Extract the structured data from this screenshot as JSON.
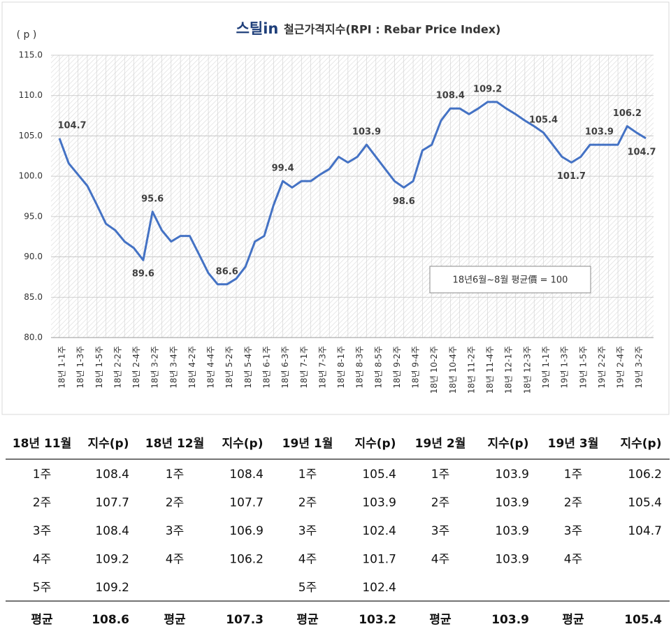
{
  "chart_data": {
    "type": "line",
    "title_logo": "스틸in",
    "title": "철근가격지수(RPI : Rebar Price Index)",
    "y_axis_label": "( p )",
    "annotation": "18년6월~8월 평균價 = 100",
    "color": "#4472c4",
    "grid": true,
    "ylim": [
      80,
      115
    ],
    "yticks": [
      {
        "value": 80,
        "label": "80.0"
      },
      {
        "value": 85,
        "label": "85.0"
      },
      {
        "value": 90,
        "label": "90.0"
      },
      {
        "value": 95,
        "label": "95.0"
      },
      {
        "value": 100,
        "label": "100.0"
      },
      {
        "value": 105,
        "label": "105.0"
      },
      {
        "value": 110,
        "label": "110.0"
      },
      {
        "value": 115,
        "label": "115.0"
      }
    ],
    "categories": [
      "18년 1-1주",
      null,
      "18년 1-3주",
      null,
      "18년 1-5주",
      null,
      "18년 2-2주",
      null,
      "18년 2-4주",
      null,
      "18년 3-2주",
      null,
      "18년 3-4주",
      null,
      "18년 4-2주",
      null,
      "18년 4-4주",
      null,
      "18년 5-2주",
      null,
      "18년 5-4주",
      null,
      "18년 6-1주",
      null,
      "18년 6-3주",
      null,
      "18년 7-1주",
      null,
      "18년 7-3주",
      null,
      "18년 8-1주",
      null,
      "18년 8-3주",
      null,
      "18년 8-5주",
      null,
      "18년 9-2주",
      null,
      "18년 9-4주",
      null,
      "18년 10-2주",
      null,
      "18년 10-4주",
      null,
      "18년 11-2주",
      null,
      "18년 11-4주",
      null,
      "18년 12-1주",
      null,
      "18년 12-3주",
      null,
      "19년 1-1주",
      null,
      "19년 1-3주",
      null,
      "19년 1-5주",
      null,
      "19년 2-2주",
      null,
      "19년 2-4주",
      null,
      "19년 3-2주",
      null
    ],
    "values": [
      104.7,
      101.6,
      100.2,
      98.8,
      96.5,
      94.1,
      93.3,
      91.9,
      91.1,
      89.6,
      95.6,
      93.3,
      91.9,
      92.6,
      92.6,
      90.3,
      88.0,
      86.6,
      86.6,
      87.3,
      88.8,
      91.9,
      92.6,
      96.4,
      99.4,
      98.6,
      99.4,
      99.4,
      100.2,
      100.9,
      102.4,
      101.7,
      102.4,
      103.9,
      102.4,
      100.9,
      99.4,
      98.6,
      99.4,
      103.2,
      103.9,
      106.9,
      108.4,
      108.4,
      107.7,
      108.4,
      109.2,
      109.2,
      108.4,
      107.7,
      106.9,
      106.2,
      105.4,
      103.9,
      102.4,
      101.7,
      102.4,
      103.9,
      103.9,
      103.9,
      103.9,
      106.2,
      105.4,
      104.7
    ],
    "value_labels": [
      "104.7",
      null,
      null,
      null,
      null,
      null,
      null,
      null,
      null,
      "89.6",
      "95.6",
      null,
      null,
      null,
      null,
      null,
      null,
      null,
      "86.6",
      null,
      null,
      null,
      null,
      null,
      "99.4",
      null,
      null,
      null,
      null,
      null,
      null,
      null,
      null,
      "103.9",
      null,
      null,
      null,
      "98.6",
      null,
      null,
      null,
      null,
      "108.4",
      null,
      null,
      null,
      "109.2",
      null,
      null,
      null,
      null,
      null,
      "105.4",
      null,
      null,
      "101.7",
      null,
      null,
      "103.9",
      null,
      null,
      "106.2",
      null,
      "104.7"
    ]
  },
  "table": {
    "header": [
      "18년 11월",
      "지수(p)",
      "18년 12월",
      "지수(p)",
      "19년 1월",
      "지수(p)",
      "19년 2월",
      "지수(p)",
      "19년 3월",
      "지수(p)"
    ],
    "rows": [
      [
        "1주",
        "108.4",
        "1주",
        "108.4",
        "1주",
        "105.4",
        "1주",
        "103.9",
        "1주",
        "106.2"
      ],
      [
        "2주",
        "107.7",
        "2주",
        "107.7",
        "2주",
        "103.9",
        "2주",
        "103.9",
        "2주",
        "105.4"
      ],
      [
        "3주",
        "108.4",
        "3주",
        "106.9",
        "3주",
        "102.4",
        "3주",
        "103.9",
        "3주",
        "104.7"
      ],
      [
        "4주",
        "109.2",
        "4주",
        "106.2",
        "4주",
        "101.7",
        "4주",
        "103.9",
        "4주",
        null
      ],
      [
        "5주",
        "109.2",
        null,
        null,
        "5주",
        "102.4",
        null,
        null,
        null,
        null
      ]
    ],
    "footer": [
      "평균",
      "108.6",
      "평균",
      "107.3",
      "평균",
      "103.2",
      "평균",
      "103.9",
      "평균",
      "105.4"
    ]
  }
}
